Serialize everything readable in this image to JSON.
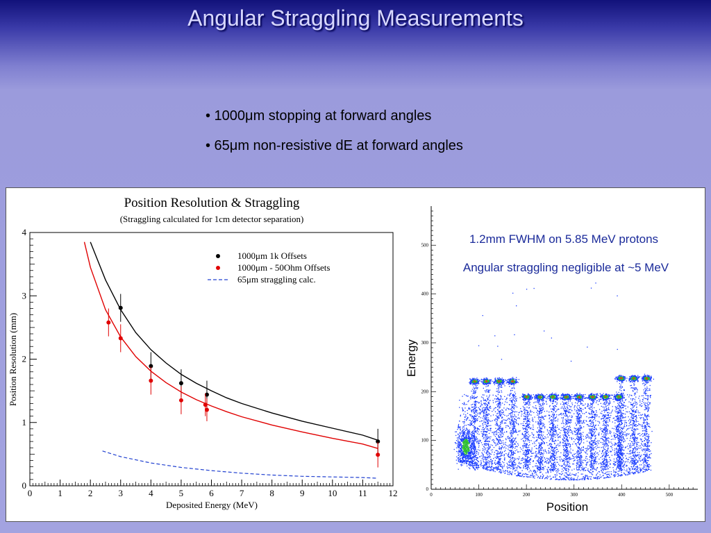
{
  "slide": {
    "title": "Angular Straggling Measurements",
    "bullets": [
      "• 1000μm stopping at forward angles",
      "• 65μm non-resistive dE at forward angles"
    ]
  },
  "right_plot": {
    "annotation_1": "1.2mm FWHM on 5.85 MeV protons",
    "annotation_2": "Angular straggling negligible at ~5 MeV"
  },
  "chart_data": [
    {
      "type": "scatter",
      "title": "Position Resolution & Straggling",
      "subtitle": "(Straggling calculated for 1cm detector separation)",
      "xlabel": "Deposited Energy (MeV)",
      "ylabel": "Position Resolution (mm)",
      "xlim": [
        0,
        12
      ],
      "ylim": [
        0,
        4
      ],
      "xticks": [
        0,
        1,
        2,
        3,
        4,
        5,
        6,
        7,
        8,
        9,
        10,
        11,
        12
      ],
      "yticks": [
        0,
        1,
        2,
        3,
        4
      ],
      "grid": false,
      "legend_position": "top-right",
      "series": [
        {
          "name": "1000μm 1k Offsets",
          "color": "#000000",
          "marker": "dot",
          "points": [
            {
              "x": 3.0,
              "y": 2.81,
              "err": 0.22
            },
            {
              "x": 4.0,
              "y": 1.89,
              "err": 0.22
            },
            {
              "x": 5.0,
              "y": 1.62,
              "err": 0.22
            },
            {
              "x": 5.85,
              "y": 1.44,
              "err": 0.22
            },
            {
              "x": 11.5,
              "y": 0.7,
              "err": 0.2
            }
          ],
          "fit": [
            [
              2.0,
              3.85
            ],
            [
              2.25,
              3.55
            ],
            [
              2.5,
              3.25
            ],
            [
              3,
              2.78
            ],
            [
              3.5,
              2.42
            ],
            [
              4,
              2.15
            ],
            [
              4.5,
              1.94
            ],
            [
              5,
              1.76
            ],
            [
              5.5,
              1.62
            ],
            [
              6,
              1.5
            ],
            [
              6.5,
              1.39
            ],
            [
              7,
              1.3
            ],
            [
              8,
              1.15
            ],
            [
              9,
              1.02
            ],
            [
              10,
              0.91
            ],
            [
              11,
              0.8
            ],
            [
              11.5,
              0.72
            ]
          ]
        },
        {
          "name": "1000μm - 50Ohm Offsets",
          "color": "#e00000",
          "marker": "dot",
          "points": [
            {
              "x": 2.6,
              "y": 2.58,
              "err": 0.22
            },
            {
              "x": 3.0,
              "y": 2.33,
              "err": 0.22
            },
            {
              "x": 4.0,
              "y": 1.66,
              "err": 0.22
            },
            {
              "x": 5.0,
              "y": 1.35,
              "err": 0.22
            },
            {
              "x": 5.8,
              "y": 1.28,
              "err": 0.18
            },
            {
              "x": 5.85,
              "y": 1.2,
              "err": 0.18
            },
            {
              "x": 11.5,
              "y": 0.49,
              "err": 0.2
            }
          ],
          "fit": [
            [
              1.8,
              3.85
            ],
            [
              2,
              3.45
            ],
            [
              2.5,
              2.78
            ],
            [
              3,
              2.35
            ],
            [
              3.5,
              2.04
            ],
            [
              4,
              1.81
            ],
            [
              4.5,
              1.63
            ],
            [
              5,
              1.48
            ],
            [
              5.5,
              1.36
            ],
            [
              6,
              1.26
            ],
            [
              6.5,
              1.17
            ],
            [
              7,
              1.09
            ],
            [
              8,
              0.96
            ],
            [
              9,
              0.85
            ],
            [
              10,
              0.75
            ],
            [
              11,
              0.66
            ],
            [
              11.5,
              0.59
            ]
          ]
        },
        {
          "name": "65μm straggling calc.",
          "color": "#2040d0",
          "marker": "dashed-line",
          "points": [],
          "fit": [
            [
              2.4,
              0.55
            ],
            [
              3,
              0.46
            ],
            [
              4,
              0.36
            ],
            [
              5,
              0.29
            ],
            [
              6,
              0.24
            ],
            [
              7,
              0.2
            ],
            [
              8,
              0.17
            ],
            [
              9,
              0.15
            ],
            [
              10,
              0.14
            ],
            [
              11,
              0.13
            ],
            [
              11.5,
              0.12
            ]
          ]
        }
      ]
    },
    {
      "type": "scatter",
      "title": "",
      "xlabel": "Position",
      "ylabel": "Energy",
      "xlim": [
        0,
        560
      ],
      "ylim": [
        0,
        580
      ],
      "xticks": [
        0,
        100,
        200,
        300,
        400,
        500
      ],
      "yticks": [
        0,
        100,
        200,
        300,
        400,
        500
      ],
      "peak_clusters": [
        {
          "x": 90,
          "y": 222
        },
        {
          "x": 115,
          "y": 222
        },
        {
          "x": 142,
          "y": 222
        },
        {
          "x": 170,
          "y": 222
        },
        {
          "x": 200,
          "y": 190
        },
        {
          "x": 228,
          "y": 190
        },
        {
          "x": 255,
          "y": 190
        },
        {
          "x": 283,
          "y": 190
        },
        {
          "x": 310,
          "y": 190
        },
        {
          "x": 338,
          "y": 190
        },
        {
          "x": 365,
          "y": 190
        },
        {
          "x": 393,
          "y": 190
        },
        {
          "x": 398,
          "y": 228
        },
        {
          "x": 425,
          "y": 228
        },
        {
          "x": 452,
          "y": 228
        }
      ],
      "colors": {
        "low": "#1a3cff",
        "mid": "#30c030",
        "high": "#ff2020"
      }
    }
  ]
}
